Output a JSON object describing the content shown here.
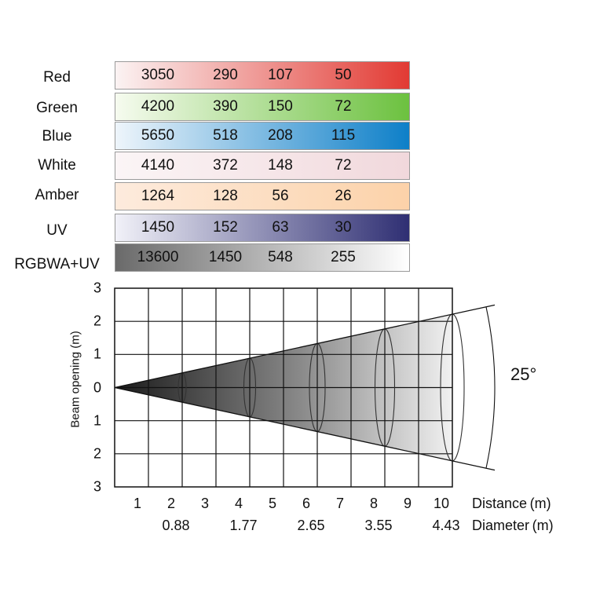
{
  "table": {
    "rows": [
      {
        "label": "Red",
        "values": [
          "3050",
          "290",
          "107",
          "50"
        ],
        "colors": [
          "#fbf3f3",
          "#e23a33"
        ]
      },
      {
        "label": "Green",
        "values": [
          "4200",
          "390",
          "150",
          "72"
        ],
        "colors": [
          "#f6fbef",
          "#6cc13f"
        ]
      },
      {
        "label": "Blue",
        "values": [
          "5650",
          "518",
          "208",
          "115"
        ],
        "colors": [
          "#eef5fb",
          "#0d7fc8"
        ]
      },
      {
        "label": "White",
        "values": [
          "4140",
          "372",
          "148",
          "72"
        ],
        "colors": [
          "#fbf5f6",
          "#f1d8dc"
        ]
      },
      {
        "label": "Amber",
        "values": [
          "1264",
          "128",
          "56",
          "26"
        ],
        "colors": [
          "#fdebdd",
          "#fcd2a9"
        ]
      },
      {
        "label": "UV",
        "values": [
          "1450",
          "152",
          "63",
          "30"
        ],
        "colors": [
          "#f1f1f8",
          "#2f2f73"
        ]
      },
      {
        "label": "RGBWA+UV",
        "values": [
          "13600",
          "1450",
          "548",
          "255"
        ],
        "colors": [
          "#6a6a6a",
          "#ffffff"
        ]
      }
    ]
  },
  "diagram": {
    "y_axis_label": "Beam opening (m)",
    "y_ticks": [
      "3",
      "2",
      "1",
      "0",
      "1",
      "2",
      "3"
    ],
    "distance_ticks": [
      "1",
      "2",
      "3",
      "4",
      "5",
      "6",
      "7",
      "8",
      "9",
      "10"
    ],
    "distance_label": "Distance (m)",
    "diameter_values": [
      "0.88",
      "1.77",
      "2.65",
      "3.55",
      "4.43"
    ],
    "diameter_label": "Diameter (m)",
    "angle_label": "25°"
  }
}
